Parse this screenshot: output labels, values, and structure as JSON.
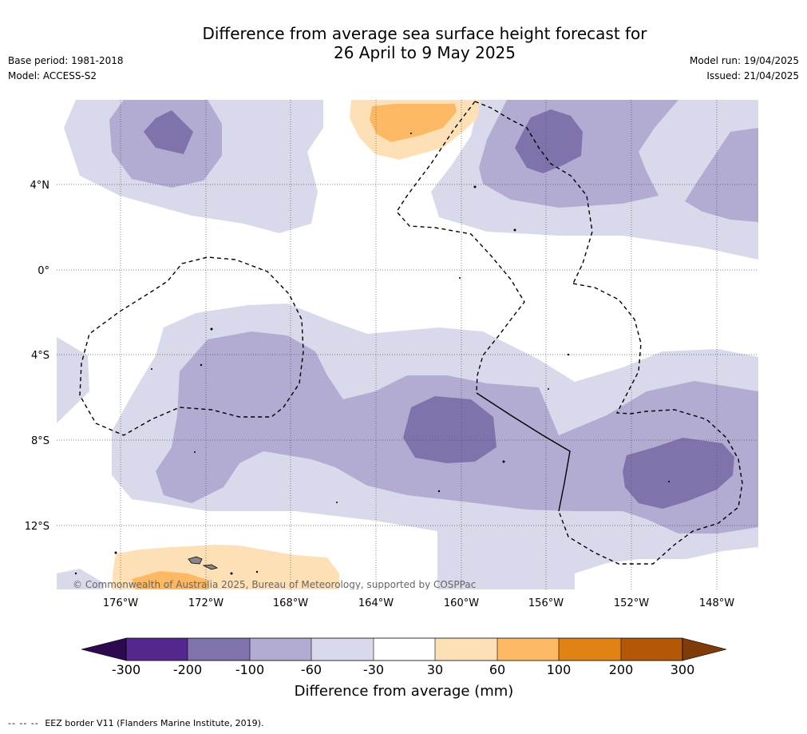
{
  "title": {
    "line1": "Difference from average sea surface height forecast for",
    "line2": "26 April to 9 May 2025"
  },
  "meta_left": {
    "base_period": "Base period: 1981-2018",
    "model": "Model: ACCESS-S2"
  },
  "meta_right": {
    "model_run": "Model run: 19/04/2025",
    "issued": "Issued: 21/04/2025"
  },
  "map": {
    "copyright": "© Commonwealth of Australia 2025, Bureau of Meteorology, supported by COSPPac",
    "lat_labels": [
      "4°N",
      "0°",
      "4°S",
      "8°S",
      "12°S"
    ],
    "lon_labels": [
      "176°W",
      "172°W",
      "168°W",
      "164°W",
      "160°W",
      "156°W",
      "152°W",
      "148°W"
    ]
  },
  "colorbar": {
    "ticks": [
      "-300",
      "-200",
      "-100",
      "-60",
      "-30",
      "30",
      "60",
      "100",
      "200",
      "300"
    ],
    "label": "Difference from average (mm)",
    "colors": {
      "below_min": "#2d0a4e",
      "-300_-200": "#54278f",
      "-200_-100": "#8073ac",
      "-100_-60": "#b2abd2",
      "-60_-30": "#d8daeb",
      "-30_30": "#ffffff",
      "30_60": "#fee0b6",
      "60_100": "#fdb863",
      "100_200": "#e08214",
      "200_300": "#b35806",
      "above_max": "#7f3b08"
    }
  },
  "footer": {
    "dash_symbol": "-- -- --",
    "eez_note": "EEZ border V11 (Flanders Marine Institute, 2019)."
  }
}
